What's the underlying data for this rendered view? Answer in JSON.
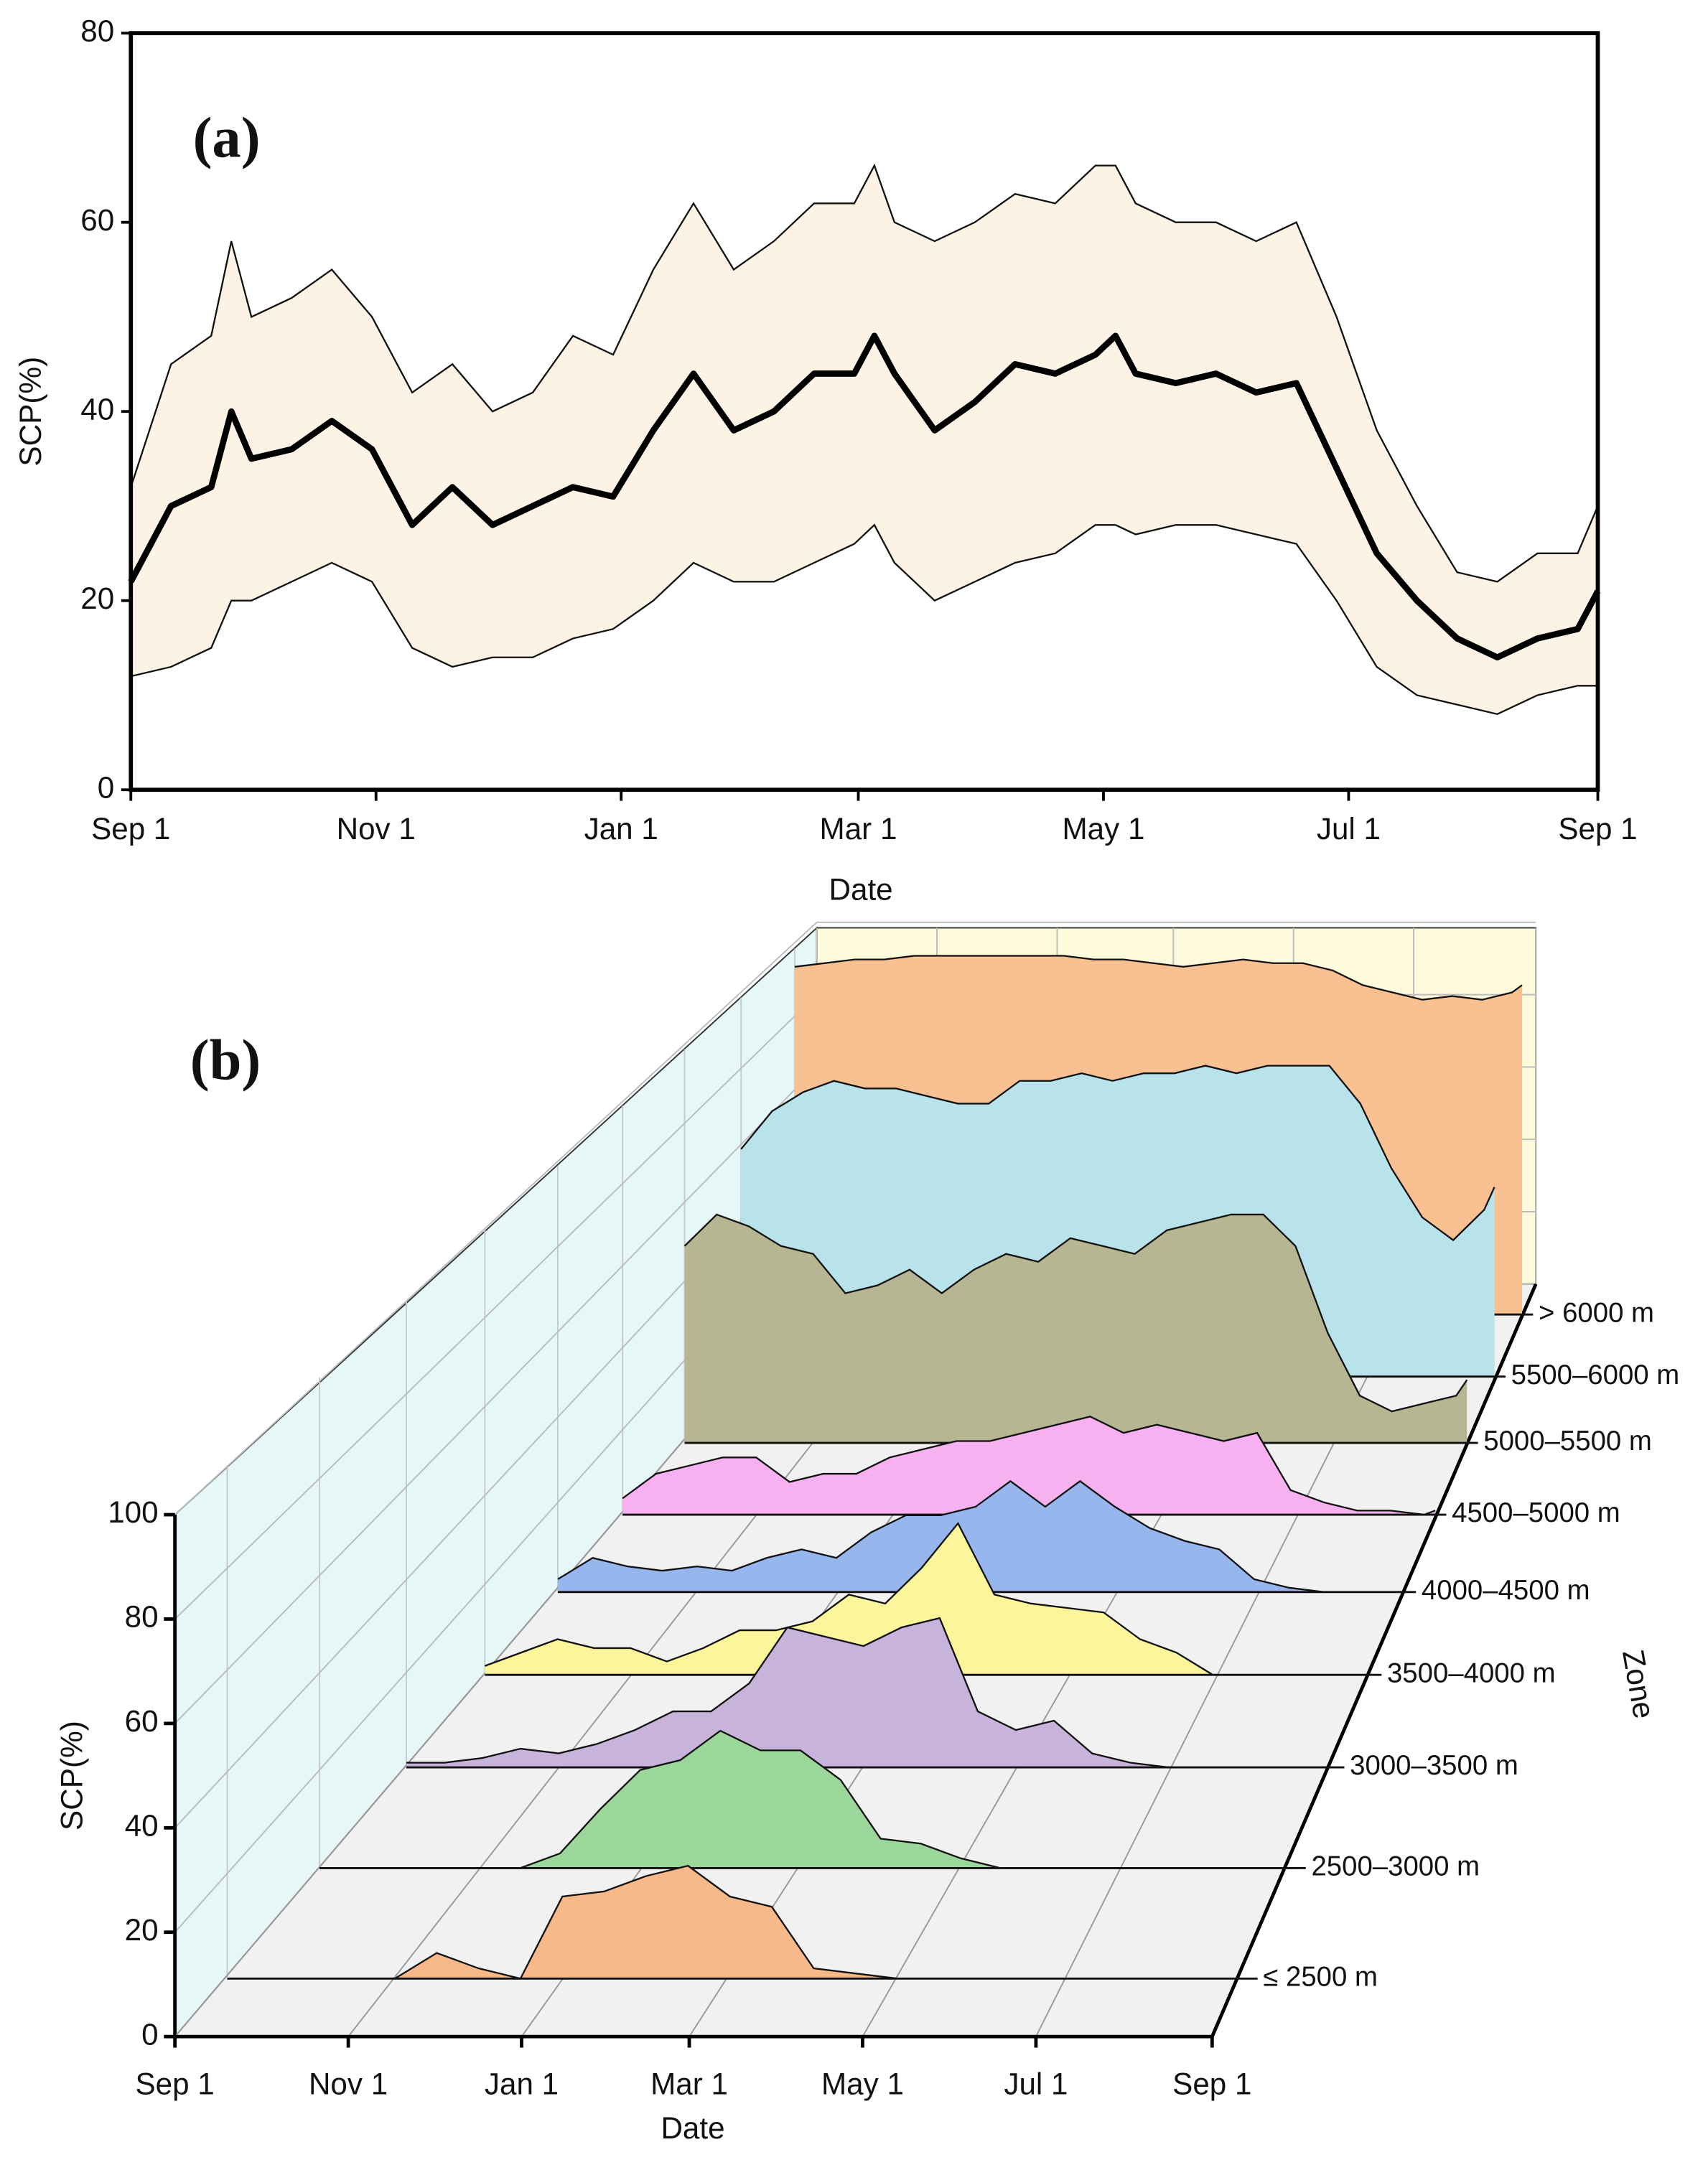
{
  "chart_data": [
    {
      "type": "line",
      "annotation": "(a)",
      "xlabel": "Date",
      "ylabel": "SCP(%)",
      "x": [
        0,
        10,
        20,
        25,
        30,
        40,
        50,
        60,
        70,
        80,
        90,
        100,
        110,
        120,
        130,
        140,
        150,
        160,
        170,
        180,
        185,
        190,
        200,
        210,
        220,
        230,
        240,
        245,
        250,
        260,
        270,
        280,
        290,
        300,
        310,
        320,
        330,
        340,
        350,
        360,
        365
      ],
      "series": [
        {
          "color": "#000000",
          "values": [
            22,
            30,
            32,
            40,
            35,
            36,
            39,
            36,
            28,
            32,
            28,
            30,
            32,
            31,
            38,
            44,
            38,
            40,
            44,
            44,
            48,
            44,
            38,
            41,
            45,
            44,
            46,
            48,
            44,
            43,
            44,
            42,
            43,
            34,
            25,
            20,
            16,
            14,
            16,
            17,
            21
          ]
        }
      ],
      "band": {
        "color": "#fdf3e4",
        "upper": [
          32,
          45,
          48,
          58,
          50,
          52,
          55,
          50,
          42,
          45,
          40,
          42,
          48,
          46,
          55,
          62,
          55,
          58,
          62,
          62,
          66,
          60,
          58,
          60,
          63,
          62,
          66,
          66,
          62,
          60,
          60,
          58,
          60,
          50,
          38,
          30,
          23,
          22,
          25,
          25,
          30
        ],
        "lower": [
          12,
          13,
          15,
          20,
          20,
          22,
          24,
          22,
          15,
          13,
          14,
          14,
          16,
          17,
          20,
          24,
          22,
          22,
          24,
          26,
          28,
          24,
          20,
          22,
          24,
          25,
          28,
          28,
          27,
          28,
          28,
          27,
          26,
          20,
          13,
          10,
          9,
          8,
          10,
          11,
          11
        ]
      },
      "xlim": [
        0,
        365
      ],
      "xticks": [
        {
          "value": 0,
          "label": "Sep 1"
        },
        {
          "value": 61,
          "label": "Nov 1"
        },
        {
          "value": 122,
          "label": "Jan 1"
        },
        {
          "value": 181,
          "label": "Mar 1"
        },
        {
          "value": 242,
          "label": "May 1"
        },
        {
          "value": 303,
          "label": "Jul 1"
        },
        {
          "value": 365,
          "label": "Sep 1"
        }
      ],
      "ylim": [
        0,
        80
      ],
      "yticks": [
        0,
        20,
        40,
        60,
        80
      ]
    },
    {
      "type": "ridgeline",
      "annotation": "(b)",
      "xlabel": "Date",
      "ylabel": "SCP(%)",
      "zlabel": "Zone",
      "x": [
        0,
        15,
        30,
        45,
        60,
        75,
        90,
        105,
        120,
        135,
        150,
        165,
        180,
        195,
        210,
        225,
        240,
        255,
        270,
        285,
        300,
        315,
        330,
        345,
        360,
        365
      ],
      "series": [
        {
          "name": "≤ 2500 m",
          "color": "#f8b98a",
          "values": [
            0,
            0,
            0,
            0,
            0,
            5,
            2,
            0,
            16,
            17,
            20,
            22,
            16,
            14,
            2,
            1,
            0,
            0,
            0,
            0,
            0,
            0,
            0,
            0,
            0,
            0
          ]
        },
        {
          "name": "2500–3000 m",
          "color": "#9bd79b",
          "values": [
            0,
            0,
            0,
            0,
            0,
            0,
            3,
            12,
            20,
            22,
            28,
            24,
            24,
            18,
            6,
            5,
            2,
            0,
            0,
            0,
            0,
            0,
            0,
            0,
            0,
            0
          ]
        },
        {
          "name": "3000–3500 m",
          "color": "#c8b3da",
          "values": [
            1,
            1,
            2,
            4,
            3,
            5,
            8,
            12,
            12,
            18,
            30,
            28,
            26,
            30,
            32,
            12,
            8,
            10,
            3,
            1,
            0,
            0,
            0,
            0,
            0,
            0
          ]
        },
        {
          "name": "3500–4000 m",
          "color": "#fbf59b",
          "values": [
            2,
            5,
            8,
            6,
            6,
            3,
            6,
            10,
            10,
            12,
            18,
            16,
            24,
            34,
            18,
            16,
            15,
            14,
            8,
            5,
            0,
            0,
            0,
            0,
            0,
            0
          ]
        },
        {
          "name": "4000–4500 m",
          "color": "#97b6ee",
          "values": [
            3,
            8,
            6,
            5,
            6,
            5,
            8,
            10,
            8,
            14,
            18,
            18,
            20,
            26,
            20,
            26,
            20,
            15,
            12,
            10,
            3,
            1,
            0,
            0,
            0,
            0
          ]
        },
        {
          "name": "4500–5000 m",
          "color": "#f7b0f0",
          "values": [
            4,
            10,
            12,
            14,
            14,
            8,
            10,
            10,
            14,
            16,
            18,
            18,
            20,
            22,
            24,
            20,
            22,
            20,
            18,
            20,
            6,
            3,
            1,
            1,
            0,
            1
          ]
        },
        {
          "name": "5000–5500 m",
          "color": "#b6b692",
          "values": [
            50,
            58,
            55,
            50,
            48,
            38,
            40,
            44,
            38,
            44,
            48,
            46,
            52,
            50,
            48,
            54,
            56,
            58,
            58,
            50,
            28,
            12,
            8,
            10,
            12,
            16
          ]
        },
        {
          "name": "5500–6000 m",
          "color": "#b8e3ea",
          "values": [
            60,
            70,
            75,
            78,
            76,
            76,
            74,
            72,
            72,
            78,
            78,
            80,
            78,
            80,
            80,
            82,
            80,
            82,
            82,
            82,
            72,
            55,
            42,
            36,
            44,
            50
          ]
        },
        {
          "name": "> 6000 m",
          "color": "#f9c192",
          "values": [
            95,
            96,
            97,
            97,
            98,
            98,
            98,
            98,
            98,
            98,
            97,
            97,
            96,
            95,
            96,
            97,
            96,
            96,
            94,
            90,
            88,
            86,
            87,
            86,
            88,
            90
          ]
        }
      ],
      "xlim": [
        0,
        365
      ],
      "xticks": [
        {
          "value": 0,
          "label": "Sep 1"
        },
        {
          "value": 61,
          "label": "Nov 1"
        },
        {
          "value": 122,
          "label": "Jan 1"
        },
        {
          "value": 181,
          "label": "Mar 1"
        },
        {
          "value": 242,
          "label": "May 1"
        },
        {
          "value": 303,
          "label": "Jul 1"
        },
        {
          "value": 365,
          "label": "Sep 1"
        }
      ],
      "ylim": [
        0,
        100
      ],
      "yticks": [
        0,
        20,
        40,
        60,
        80,
        100
      ]
    }
  ]
}
